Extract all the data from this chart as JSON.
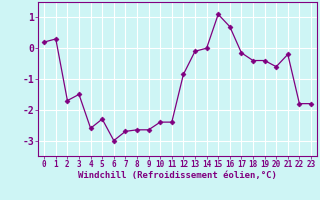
{
  "x": [
    0,
    1,
    2,
    3,
    4,
    5,
    6,
    7,
    8,
    9,
    10,
    11,
    12,
    13,
    14,
    15,
    16,
    17,
    18,
    19,
    20,
    21,
    22,
    23
  ],
  "y": [
    0.2,
    0.3,
    -1.7,
    -1.5,
    -2.6,
    -2.3,
    -3.0,
    -2.7,
    -2.65,
    -2.65,
    -2.4,
    -2.4,
    -0.85,
    -0.1,
    0.0,
    1.1,
    0.7,
    -0.15,
    -0.4,
    -0.4,
    -0.6,
    -0.2,
    -1.8,
    -1.8
  ],
  "line_color": "#800080",
  "marker": "D",
  "marker_size": 2.5,
  "bg_color": "#cef5f5",
  "grid_color": "#ffffff",
  "xlabel": "Windchill (Refroidissement éolien,°C)",
  "xlabel_color": "#800080",
  "tick_color": "#800080",
  "ylim": [
    -3.5,
    1.5
  ],
  "xlim": [
    -0.5,
    23.5
  ],
  "yticks": [
    -3,
    -2,
    -1,
    0,
    1
  ],
  "xticks": [
    0,
    1,
    2,
    3,
    4,
    5,
    6,
    7,
    8,
    9,
    10,
    11,
    12,
    13,
    14,
    15,
    16,
    17,
    18,
    19,
    20,
    21,
    22,
    23
  ]
}
